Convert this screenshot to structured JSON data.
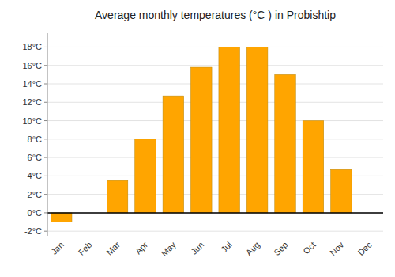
{
  "chart_data": {
    "type": "bar",
    "title": "Average monthly temperatures (°C ) in Probishtip",
    "categories": [
      "Jan",
      "Feb",
      "Mar",
      "Apr",
      "May",
      "Jun",
      "Jul",
      "Aug",
      "Sep",
      "Oct",
      "Nov",
      "Dec"
    ],
    "values": [
      -1.0,
      0.0,
      3.5,
      8.0,
      12.7,
      15.8,
      18.0,
      18.0,
      15.0,
      10.0,
      4.7,
      0.0
    ],
    "color": "#FFA500",
    "ylim": [
      -2.5,
      19.5
    ],
    "yticks": [
      {
        "value": -2,
        "label": "-2°C"
      },
      {
        "value": 0,
        "label": "0°C"
      },
      {
        "value": 2,
        "label": "2°C"
      },
      {
        "value": 4,
        "label": "4°C"
      },
      {
        "value": 6,
        "label": "6°C"
      },
      {
        "value": 8,
        "label": "8°C"
      },
      {
        "value": 10,
        "label": "10°C"
      },
      {
        "value": 12,
        "label": "12°C"
      },
      {
        "value": 14,
        "label": "14°C"
      },
      {
        "value": 16,
        "label": "16°C"
      },
      {
        "value": 18,
        "label": "18°C"
      }
    ],
    "grid": true
  }
}
